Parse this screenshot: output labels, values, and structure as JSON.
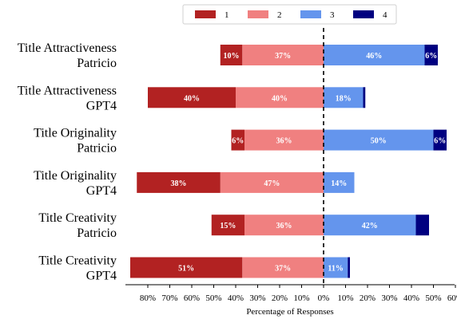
{
  "chart_data": {
    "type": "bar",
    "orientation": "horizontal-diverging",
    "xlabel": "Percentage of Responses",
    "xlim": [
      -90,
      60
    ],
    "xticks": [
      -80,
      -70,
      -60,
      -50,
      -40,
      -30,
      -20,
      -10,
      0,
      10,
      20,
      30,
      40,
      50,
      60
    ],
    "xtick_labels": [
      "80%",
      "70%",
      "60%",
      "50%",
      "40%",
      "30%",
      "20%",
      "10%",
      "0%",
      "10%",
      "20%",
      "30%",
      "40%",
      "50%",
      "60%"
    ],
    "zero_line": "dashed",
    "legend_position": "top-center",
    "categories": [
      [
        "Title Attractiveness",
        "Patricio"
      ],
      [
        "Title Attractiveness",
        "GPT4"
      ],
      [
        "Title Originality",
        "Patricio"
      ],
      [
        "Title Originality",
        "GPT4"
      ],
      [
        "Title Creativity",
        "Patricio"
      ],
      [
        "Title Creativity",
        "GPT4"
      ]
    ],
    "series": [
      {
        "name": "1",
        "color": "#b22222",
        "side": "negative",
        "values": [
          10,
          40,
          6,
          38,
          15,
          51
        ],
        "labels": [
          "10%",
          "40%",
          "6%",
          "38%",
          "15%",
          "51%"
        ]
      },
      {
        "name": "2",
        "color": "#f08080",
        "side": "negative",
        "values": [
          37,
          40,
          36,
          47,
          36,
          37
        ],
        "labels": [
          "37%",
          "40%",
          "36%",
          "47%",
          "36%",
          "37%"
        ]
      },
      {
        "name": "3",
        "color": "#6495ed",
        "side": "positive",
        "values": [
          46,
          18,
          50,
          14,
          42,
          11
        ],
        "labels": [
          "46%",
          "18%",
          "50%",
          "14%",
          "42%",
          "11%"
        ]
      },
      {
        "name": "4",
        "color": "#000080",
        "side": "positive",
        "values": [
          6,
          1,
          6,
          0,
          6,
          1
        ],
        "labels": [
          "6%",
          "",
          "6%",
          "",
          "",
          ""
        ]
      }
    ]
  }
}
